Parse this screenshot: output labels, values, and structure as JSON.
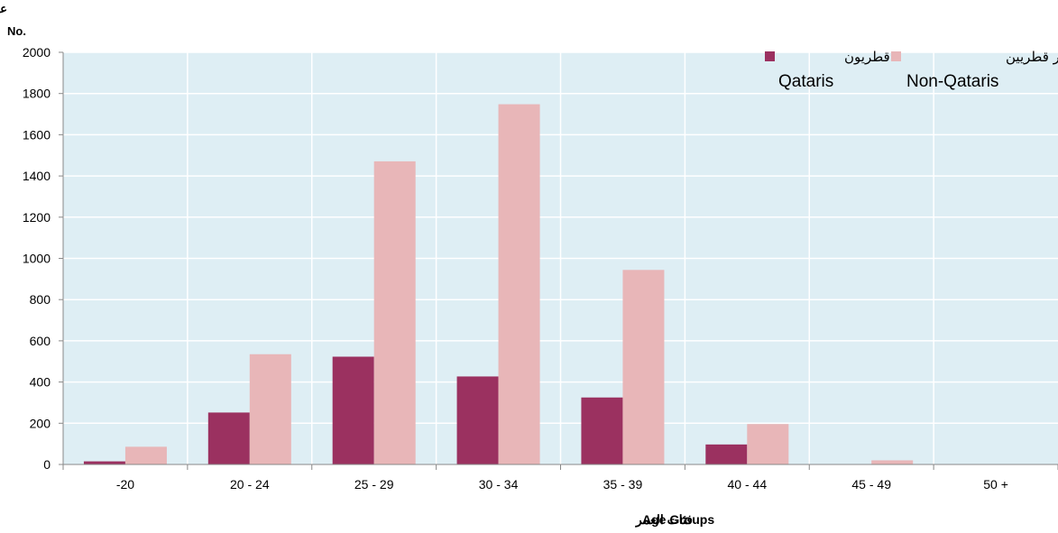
{
  "chart_data": {
    "type": "bar",
    "ylabel_ar": "عدد",
    "ylabel_en": "No.",
    "xlabel_ar": "فئات العمر",
    "xlabel_en": "Age Groups",
    "categories": [
      "-20",
      "20 - 24",
      "25 - 29",
      "30 - 34",
      "35 - 39",
      "40 - 44",
      "45 - 49",
      "50 +"
    ],
    "ylim": [
      0,
      2000
    ],
    "yticks": [
      0,
      200,
      400,
      600,
      800,
      1000,
      1200,
      1400,
      1600,
      1800,
      2000
    ],
    "grid": true,
    "legend_position": "top-right",
    "series": [
      {
        "name_ar": "قطريون",
        "name_en": "Qataris",
        "color": "#9b3160",
        "values": [
          15,
          252,
          523,
          427,
          325,
          97,
          0,
          0
        ]
      },
      {
        "name_ar": "غير قطريين",
        "name_en": "Non-Qataris",
        "color": "#e8b6b8",
        "values": [
          86,
          535,
          1471,
          1748,
          944,
          196,
          20,
          0
        ]
      }
    ],
    "colors": {
      "plot_background": "#deeef4",
      "gridline": "#ffffff",
      "axis": "#888888"
    }
  }
}
